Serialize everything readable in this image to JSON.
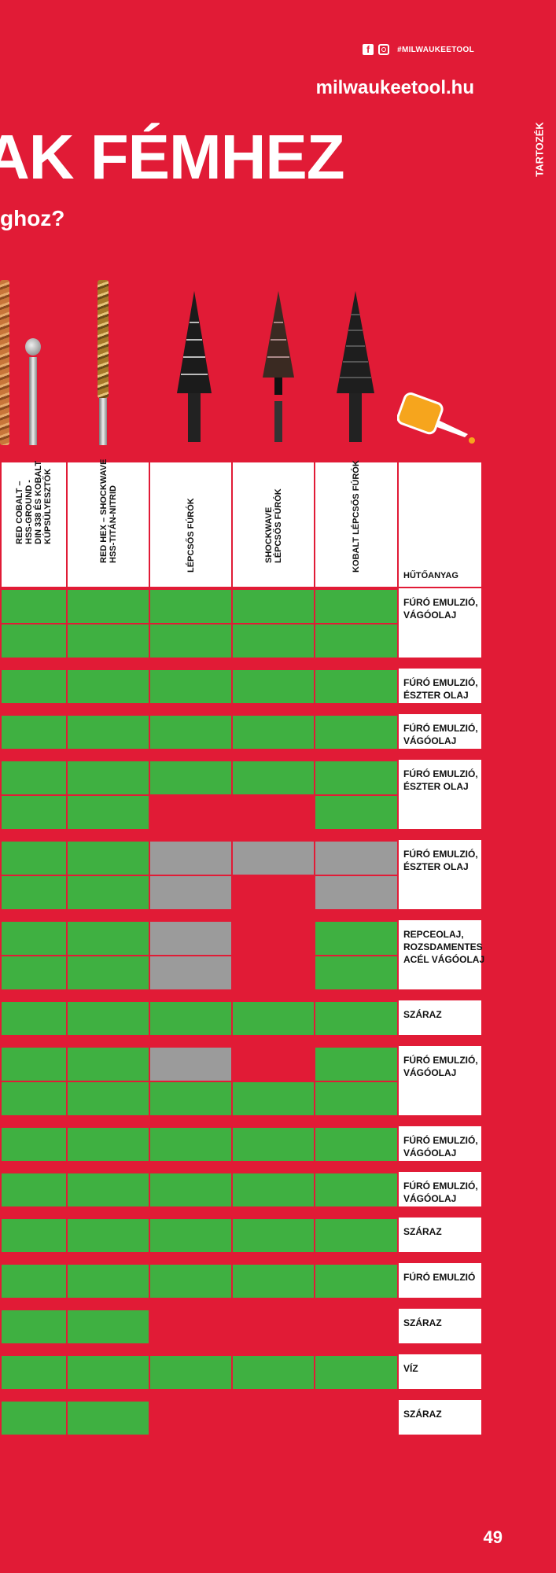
{
  "header": {
    "hashtag": "#MILWAUKEETOOL",
    "website": "milwaukeetool.hu",
    "headline": "AK FÉMHEZ",
    "subheadline": "ghoz?",
    "side_tab": "TARTOZÉK",
    "social_icons": [
      "facebook-icon",
      "instagram-icon"
    ]
  },
  "columns": [
    {
      "label": "RED COBALT –\nHSS-GROUND -\nDIN 338 ÉS KOBALT\nKÚPSÜLYESZTŐK"
    },
    {
      "label": "RED HEX – SHOCKWAVE\nHSS-TITÁN-NITRID"
    },
    {
      "label": "LÉPCSŐS FÚRÓK"
    },
    {
      "label": "SHOCKWAVE\nLÉPCSŐS FÚRÓK"
    },
    {
      "label": "KOBALT LÉPCSŐS FÚRÓK"
    },
    {
      "label": "HŰTŐANYAG"
    }
  ],
  "legend": {
    "G": "#3fb041",
    "Y": "#9b9b9b",
    "R": "#e11b36"
  },
  "groups": [
    {
      "coolant": "FÚRÓ EMULZIÓ,\nVÁGÓOLAJ",
      "rows": [
        "GGGGG",
        "GGGGG"
      ]
    },
    {
      "coolant": "FÚRÓ EMULZIÓ,\nÉSZTER OLAJ",
      "rows": [
        "GGGGG"
      ]
    },
    {
      "coolant": "FÚRÓ EMULZIÓ,\nVÁGÓOLAJ",
      "rows": [
        "GGGGG"
      ]
    },
    {
      "coolant": "FÚRÓ EMULZIÓ,\nÉSZTER OLAJ",
      "rows": [
        "GGGGG",
        "GGRRG"
      ]
    },
    {
      "coolant": "FÚRÓ EMULZIÓ,\nÉSZTER OLAJ",
      "rows": [
        "GGYYY",
        "GGYRY"
      ]
    },
    {
      "coolant": "REPCEOLAJ,\nROZSDAMENTES\nACÉL VÁGÓOLAJ",
      "rows": [
        "GGYRG",
        "GGYRG"
      ]
    },
    {
      "coolant": "SZÁRAZ",
      "rows": [
        "GGGGG"
      ]
    },
    {
      "coolant": "FÚRÓ EMULZIÓ,\nVÁGÓOLAJ",
      "rows": [
        "GGYRG",
        "GGGGG"
      ]
    },
    {
      "coolant": "FÚRÓ EMULZIÓ,\nVÁGÓOLAJ",
      "rows": [
        "GGGGG"
      ]
    },
    {
      "coolant": "FÚRÓ EMULZIÓ,\nVÁGÓOLAJ",
      "rows": [
        "GGGGG"
      ]
    },
    {
      "coolant": "SZÁRAZ",
      "rows": [
        "GGGGG"
      ]
    },
    {
      "coolant": "FÚRÓ EMULZIÓ",
      "rows": [
        "GGGGG"
      ]
    },
    {
      "coolant": "SZÁRAZ",
      "rows": [
        "GGRRR"
      ]
    },
    {
      "coolant": "VÍZ",
      "rows": [
        "GGGGG"
      ]
    },
    {
      "coolant": "SZÁRAZ",
      "rows": [
        "GGRRR"
      ]
    }
  ],
  "page_number": "49"
}
